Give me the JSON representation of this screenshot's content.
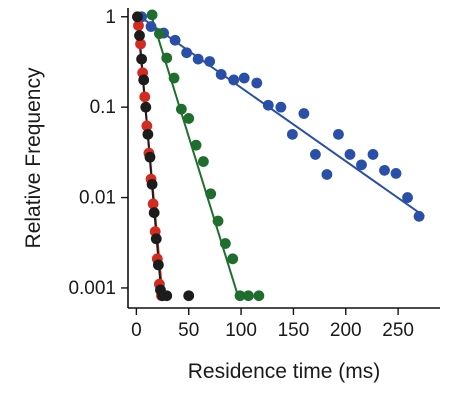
{
  "chart_data": {
    "type": "scatter",
    "xlabel": "Residence time (ms)",
    "ylabel": "Relative Frequency",
    "xlim": [
      -8,
      290
    ],
    "ylim": [
      0.0006,
      1.25
    ],
    "y_scale": "log",
    "grid": false,
    "legend": "none",
    "x_ticks": [
      0,
      50,
      100,
      150,
      200,
      250
    ],
    "x_tick_labels": [
      "0",
      "50",
      "100",
      "150",
      "200",
      "250"
    ],
    "y_ticks": [
      0.001,
      0.01,
      0.1,
      1
    ],
    "y_tick_labels": [
      "0.001",
      "0.01",
      "0.1",
      "1"
    ],
    "series": [
      {
        "color": "#2a4fa8",
        "x": [
          5,
          14,
          26,
          37,
          48,
          59,
          70,
          81,
          93,
          103,
          115,
          126,
          138,
          149,
          160,
          171,
          182,
          193,
          204,
          215,
          226,
          237,
          248,
          259,
          270
        ],
        "y": [
          1.0,
          0.78,
          0.66,
          0.55,
          0.4,
          0.34,
          0.32,
          0.23,
          0.2,
          0.21,
          0.185,
          0.105,
          0.1,
          0.05,
          0.085,
          0.03,
          0.018,
          0.05,
          0.03,
          0.023,
          0.03,
          0.02,
          0.0185,
          0.01,
          0.0062
        ],
        "fit_x": [
          2,
          275
        ],
        "fit_y": [
          1.03,
          0.0062
        ]
      },
      {
        "color": "#1f6e2e",
        "x": [
          15,
          22,
          29,
          36,
          43,
          50,
          57,
          64,
          71,
          78,
          85,
          92,
          99,
          107,
          117
        ],
        "y": [
          1.05,
          0.65,
          0.35,
          0.21,
          0.095,
          0.075,
          0.038,
          0.025,
          0.011,
          0.0055,
          0.0031,
          0.0021,
          0.00082,
          0.00082,
          0.00082
        ],
        "fit_x": [
          14,
          97
        ],
        "fit_y": [
          1.05,
          0.00082
        ]
      },
      {
        "color": "#d32b1f",
        "x": [
          2,
          4,
          6,
          8,
          10,
          12,
          14,
          16,
          18,
          20,
          22,
          24
        ],
        "y": [
          0.8,
          0.5,
          0.24,
          0.13,
          0.062,
          0.031,
          0.016,
          0.0085,
          0.0042,
          0.0021,
          0.0011,
          0.00082
        ],
        "fit_x": [
          1,
          25
        ],
        "fit_y": [
          0.95,
          0.00082
        ]
      },
      {
        "color": "#1c1c1c",
        "x": [
          1,
          3,
          5,
          7,
          9,
          11,
          13,
          15,
          17,
          19,
          21,
          23,
          25,
          29,
          50
        ],
        "y": [
          1.0,
          0.62,
          0.34,
          0.2,
          0.1,
          0.05,
          0.028,
          0.014,
          0.0068,
          0.0035,
          0.0018,
          0.00095,
          0.00082,
          0.00082,
          0.00082
        ],
        "fit_x": [
          1,
          24
        ],
        "fit_y": [
          1.1,
          0.00082
        ]
      }
    ]
  }
}
